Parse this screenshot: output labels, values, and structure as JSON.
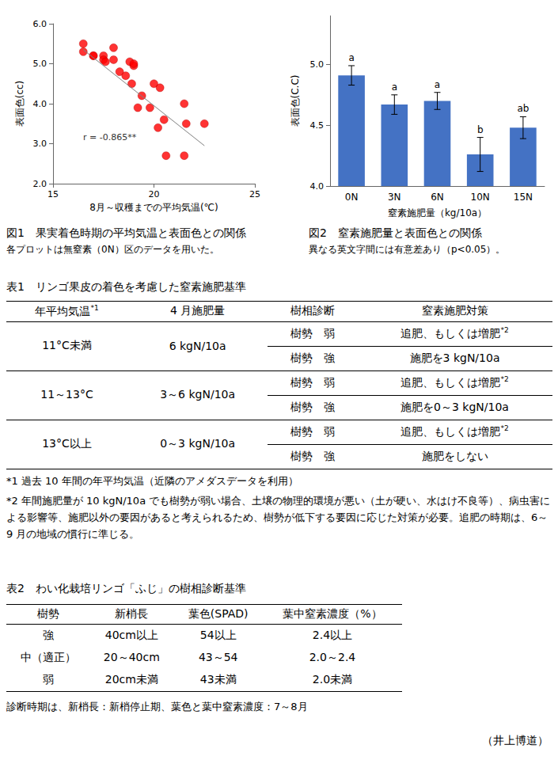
{
  "chart_data": [
    {
      "type": "scatter",
      "xlabel": "8月～収穫までの平均気温(℃)",
      "ylabel": "表面色(cc)",
      "x": [
        16.5,
        16.5,
        17.0,
        17.0,
        17.5,
        17.5,
        17.6,
        18.0,
        18.0,
        18.3,
        18.6,
        18.8,
        19.0,
        19.0,
        18.9,
        19.2,
        19.4,
        19.8,
        20.0,
        20.2,
        20.3,
        20.5,
        20.6,
        21.5,
        21.5,
        21.6,
        22.5
      ],
      "values": [
        5.5,
        5.3,
        5.2,
        5.2,
        5.2,
        5.1,
        5.05,
        5.4,
        5.1,
        4.8,
        4.7,
        5.05,
        4.95,
        5.0,
        4.5,
        3.9,
        4.2,
        3.9,
        4.5,
        3.4,
        4.4,
        3.6,
        2.7,
        2.7,
        4.0,
        3.5,
        3.5
      ],
      "color": "#ff0000",
      "marker": "circle",
      "xlim": [
        15,
        25
      ],
      "xticks": [
        15,
        20,
        25
      ],
      "ylim": [
        2,
        6
      ],
      "yticks": [
        {
          "value": 2,
          "label": "2.0"
        },
        {
          "value": 3,
          "label": "3.0"
        },
        {
          "value": 4,
          "label": "4.0"
        },
        {
          "value": 5,
          "label": "5.0"
        },
        {
          "value": 6,
          "label": "6.0"
        }
      ],
      "grid": false,
      "annotation": "r = -0.865**",
      "trend_line": {
        "x": [
          16.5,
          22.5
        ],
        "y": [
          5.35,
          2.95
        ],
        "color": "#808080"
      }
    },
    {
      "type": "bar",
      "xlabel": "窒素施肥量（kg/10a）",
      "ylabel": "表面色(C.C)",
      "categories": [
        "0N",
        "3N",
        "6N",
        "10N",
        "15N"
      ],
      "values": [
        4.91,
        4.67,
        4.7,
        4.26,
        4.48
      ],
      "errors": [
        0.08,
        0.08,
        0.07,
        0.14,
        0.09
      ],
      "letters": [
        "a",
        "a",
        "a",
        "b",
        "ab"
      ],
      "color": "#4472c4",
      "ylim": [
        4.0,
        5.4
      ],
      "yticks": [
        {
          "value": 4,
          "label": "4.0"
        },
        {
          "value": 4.5,
          "label": "4.5"
        },
        {
          "value": 5,
          "label": "5.0"
        }
      ],
      "grid": false
    }
  ],
  "document": {
    "figures": [
      {
        "caption": "図1　果実着色時期の平均気温と表面色との関係",
        "note": "各プロットは無窒素（0N）区のデータを用いた。"
      },
      {
        "caption": "図2　窒素施肥量と表面色との関係",
        "note": "異なる英文字間には有意差あり（p<0.05）。"
      }
    ],
    "table1": {
      "title": "表1　リンゴ果皮の着色を考慮した窒素施肥基準",
      "header": [
        "年平均気温*1",
        "4 月施肥量",
        "樹相診断",
        "窒素施肥対策"
      ],
      "groups": [
        {
          "temp": "11°C未満",
          "april": "6 kgN/10a",
          "rows": [
            [
              "樹勢　弱",
              "追肥、もしくは増肥*2"
            ],
            [
              "樹勢　強",
              "施肥を3 kgN/10a"
            ]
          ]
        },
        {
          "temp": "11～13°C",
          "april": "3～6 kgN/10a",
          "rows": [
            [
              "樹勢　弱",
              "追肥、もしくは増肥*2"
            ],
            [
              "樹勢　強",
              "施肥を0～3 kgN/10a"
            ]
          ]
        },
        {
          "temp": "13°C以上",
          "april": "0～3 kgN/10a",
          "rows": [
            [
              "樹勢　弱",
              "追肥、もしくは増肥*2"
            ],
            [
              "樹勢　強",
              "施肥をしない"
            ]
          ]
        }
      ],
      "footnotes": [
        "*1 過去 10 年間の年平均気温（近隣のアメダスデータを利用）",
        "*2 年間施肥量が 10 kgN/10a でも樹勢が弱い場合、土壌の物理的環境が悪い（土が硬い、水はけ不良等）、病虫害による影響等、施肥以外の要因があると考えられるため、樹勢が低下する要因に応じた対策が必要。追肥の時期は、6～9 月の地域の慣行に準じる。"
      ]
    },
    "table2": {
      "title": "表2　わい化栽培リンゴ「ふじ」の樹相診断基準",
      "header": [
        "樹勢",
        "新梢長",
        "葉色(SPAD)",
        "葉中窒素濃度（%）"
      ],
      "rows": [
        [
          "強",
          "40cm以上",
          "54以上",
          "2.4以上"
        ],
        [
          "中（適正）",
          "20～40cm",
          "43～54",
          "2.0～2.4"
        ],
        [
          "弱",
          "20cm未満",
          "43未満",
          "2.0未満"
        ]
      ],
      "note": "診断時期は、新梢長：新梢停止期、葉色と葉中窒素濃度：7～8月"
    },
    "author": "（井上博道）"
  }
}
